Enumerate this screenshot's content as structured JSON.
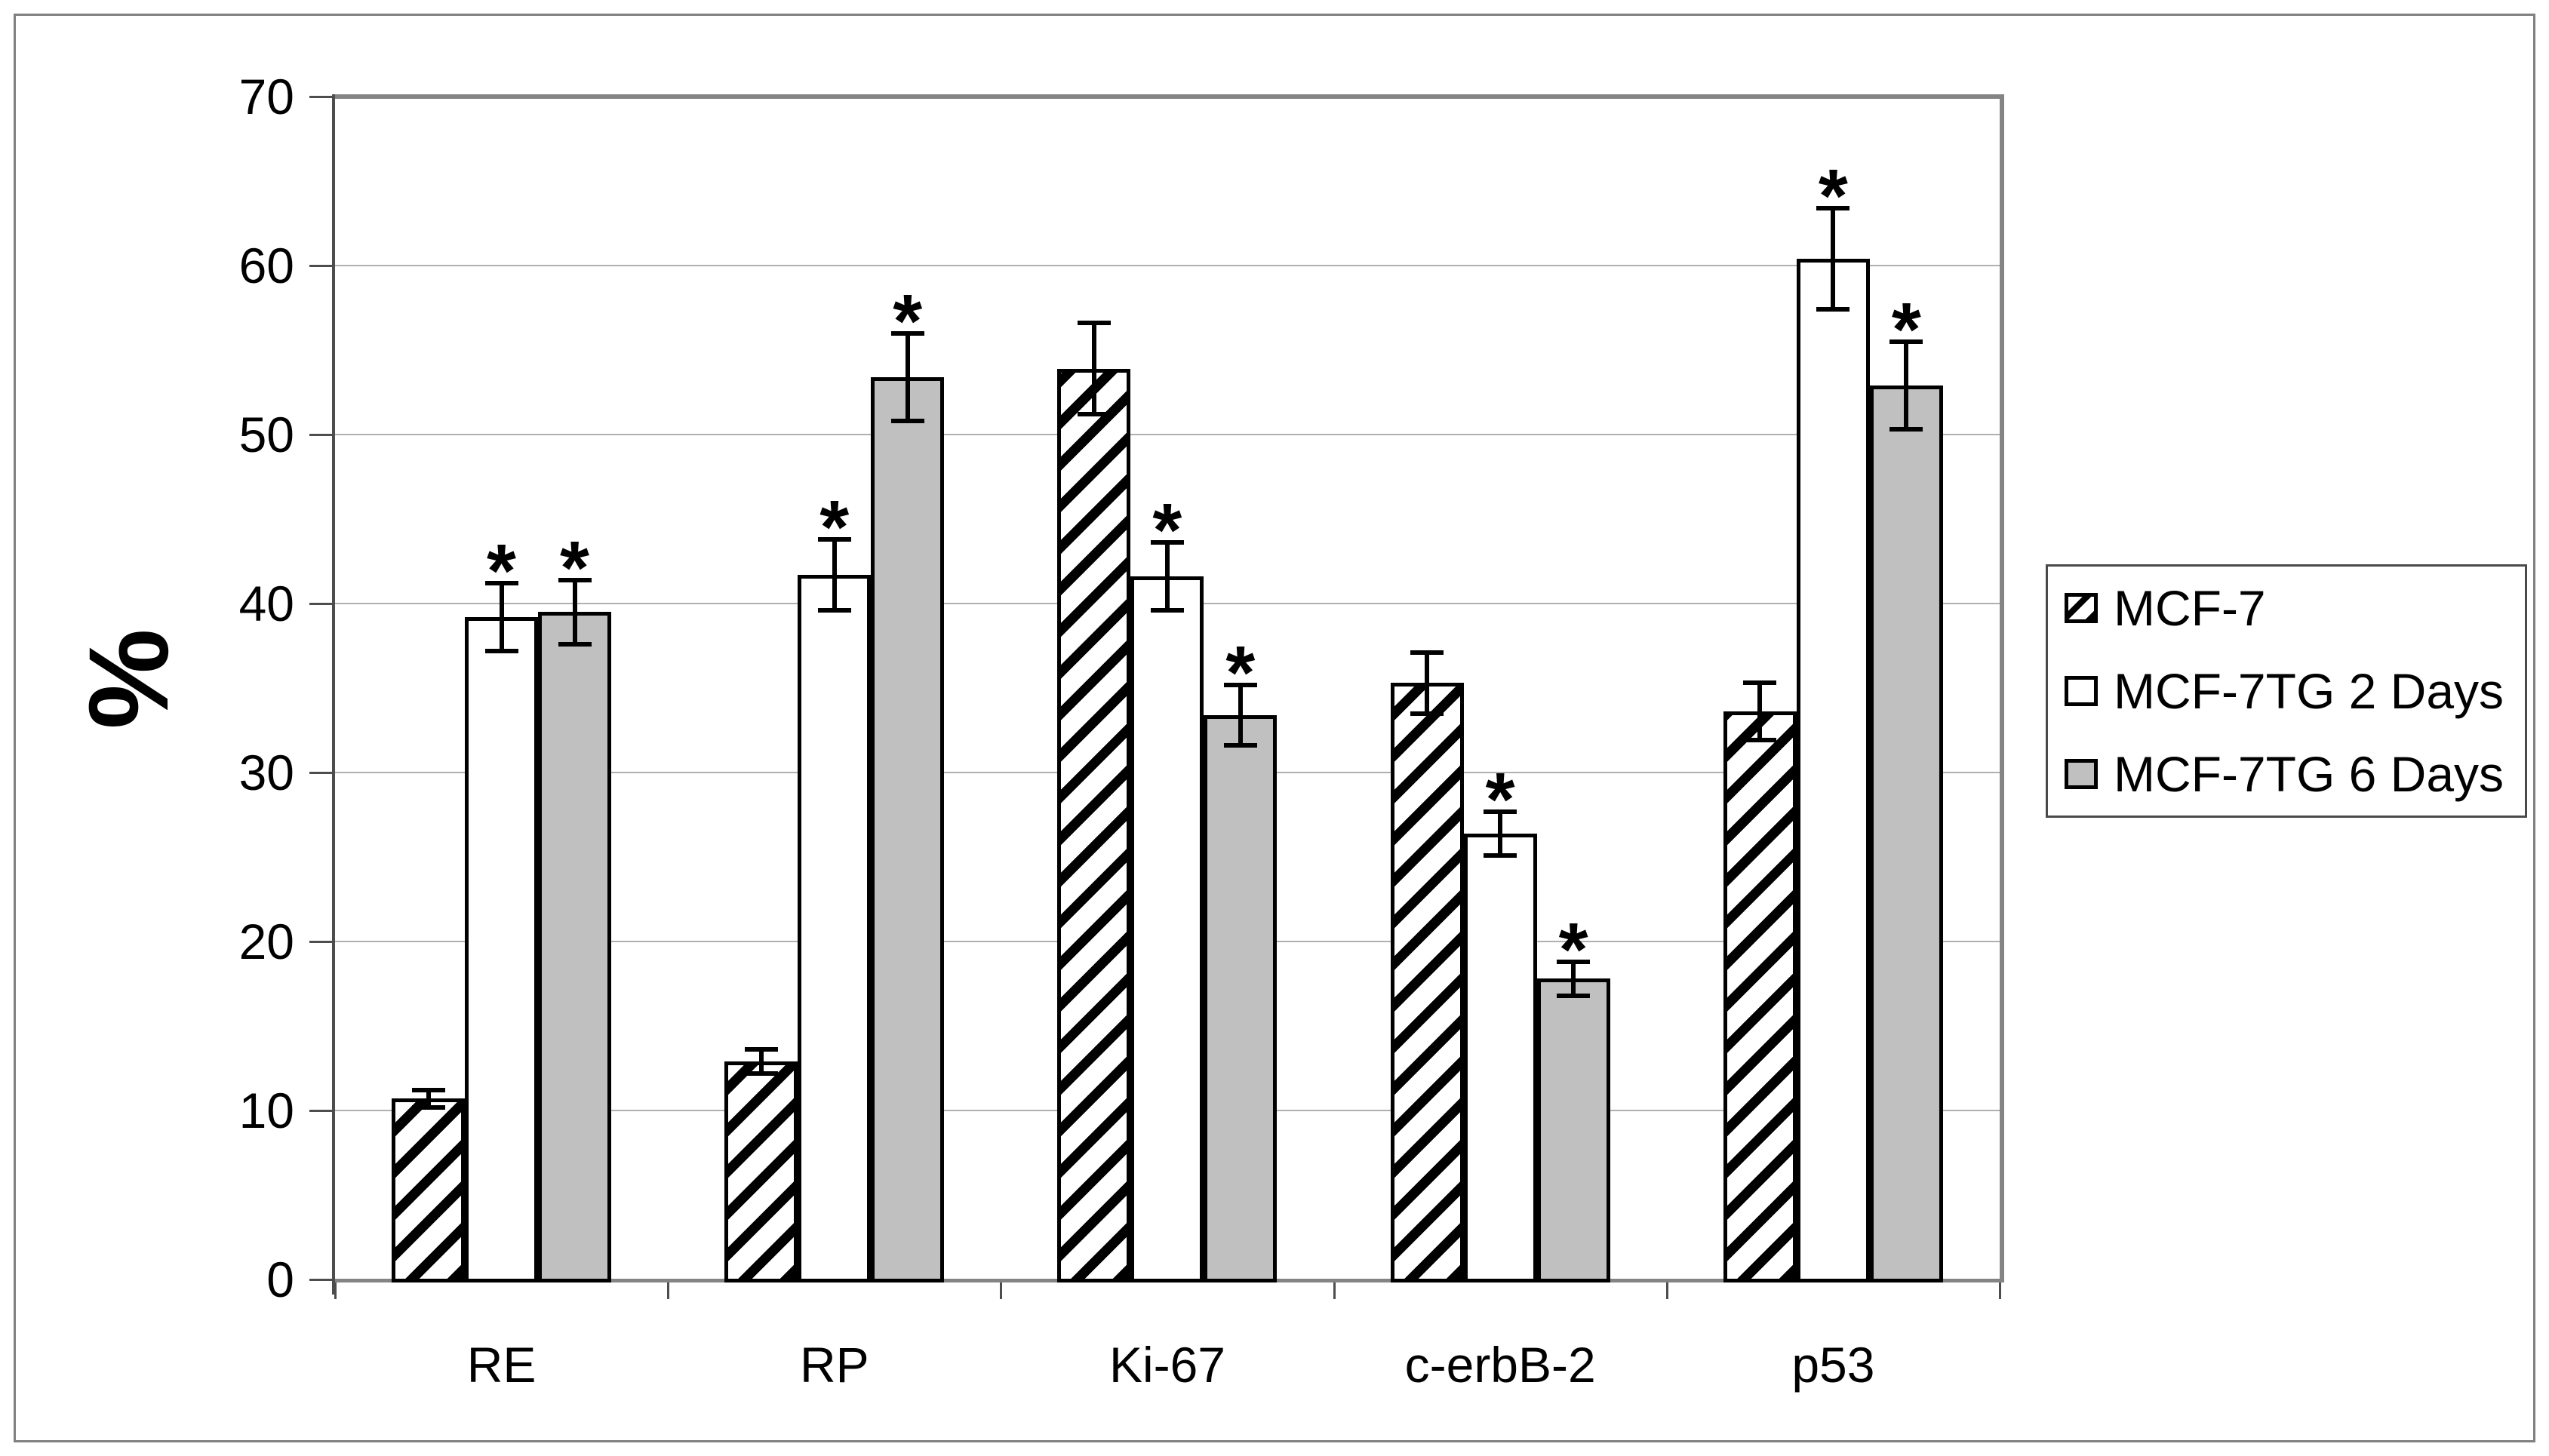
{
  "chart_data": {
    "type": "bar",
    "title": "",
    "ylabel": "%",
    "xlabel": "",
    "categories": [
      "RE",
      "RP",
      "Ki-67",
      "c-erbB-2",
      "p53"
    ],
    "series": [
      {
        "name": "MCF-7",
        "pattern": "hatched",
        "values": [
          10.7,
          12.9,
          53.9,
          35.3,
          33.6
        ],
        "errors": [
          0.5,
          0.7,
          2.7,
          1.8,
          1.7
        ],
        "significant": [
          false,
          false,
          false,
          false,
          false
        ]
      },
      {
        "name": "MCF-7TG 2 Days",
        "pattern": "white",
        "values": [
          39.2,
          41.7,
          41.6,
          26.4,
          60.4
        ],
        "errors": [
          2.0,
          2.1,
          2.0,
          1.3,
          3.0
        ],
        "significant": [
          true,
          true,
          true,
          true,
          true
        ]
      },
      {
        "name": "MCF-7TG 6 Days",
        "pattern": "gray",
        "values": [
          39.5,
          53.4,
          33.4,
          17.8,
          52.9
        ],
        "errors": [
          1.9,
          2.6,
          1.8,
          1.0,
          2.6
        ],
        "significant": [
          true,
          true,
          true,
          true,
          true
        ]
      }
    ],
    "y_axis": {
      "min": 0,
      "max": 70,
      "step": 10,
      "tick_labels": [
        "0",
        "10",
        "20",
        "30",
        "40",
        "50",
        "60",
        "70"
      ]
    },
    "ylim": [
      0,
      70
    ],
    "grid": true,
    "legend_position": "right",
    "significance_marker": "*",
    "colors": {
      "gray_fill": "#c0c0c0",
      "bar_border": "#000000",
      "grid_line": "#b0b0b0",
      "plot_border": "#848484",
      "axis_line": "#4d4d4d",
      "figure_border": "#808080",
      "text": "#000000"
    }
  }
}
